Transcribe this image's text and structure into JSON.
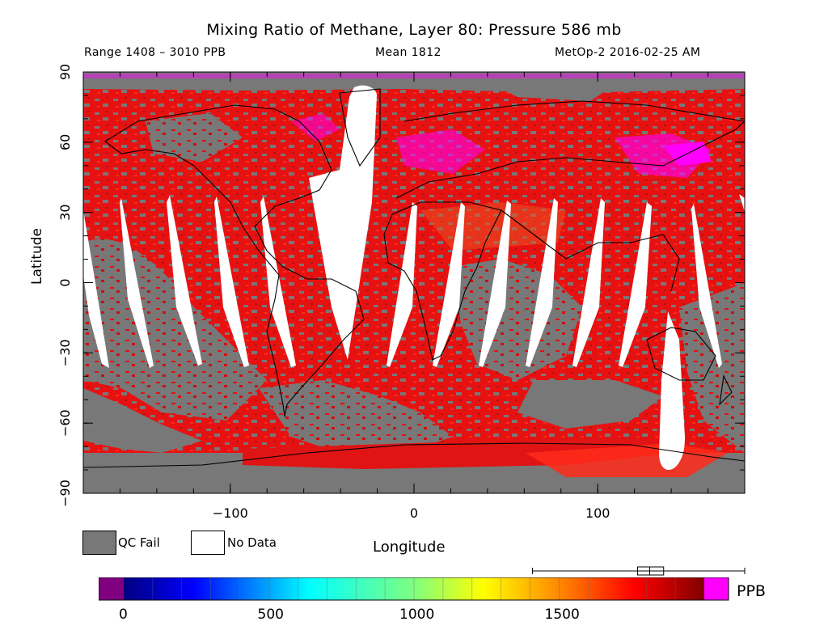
{
  "title": "Mixing Ratio of Methane, Layer 80: Pressure 586 mb",
  "subtitle_left": "Range 1408 – 3010 PPB",
  "subtitle_center": "Mean 1812",
  "subtitle_right": "MetOp-2 2016-02-25 AM",
  "xlabel": "Longitude",
  "ylabel": "Latitude",
  "x_ticks": [
    "−100",
    "0",
    "100"
  ],
  "y_ticks": [
    "90",
    "60",
    "30",
    "0",
    "−30",
    "−60",
    "−90"
  ],
  "legend": {
    "qc_fail": "QC Fail",
    "no_data": "No Data"
  },
  "colorbar": {
    "ticks": [
      "0",
      "500",
      "1000",
      "1500"
    ],
    "unit": "PPB",
    "box_summary": {
      "whisker_low": 1408,
      "q1": 1770,
      "median": 1812,
      "q3": 1860,
      "whisker_high": 3010
    }
  },
  "chart_data": {
    "type": "heatmap",
    "xlim": [
      -180,
      180
    ],
    "ylim": [
      -90,
      90
    ],
    "x_tick_values": [
      -100,
      0,
      100
    ],
    "y_tick_values": [
      90,
      60,
      30,
      0,
      -30,
      -60,
      -90
    ],
    "color_scale_range": [
      0,
      2000
    ],
    "colors": {
      "qc_fail": "#787878",
      "no_data": "#ffffff",
      "dominant": "#e81010",
      "high": "#ff00ff"
    }
  }
}
